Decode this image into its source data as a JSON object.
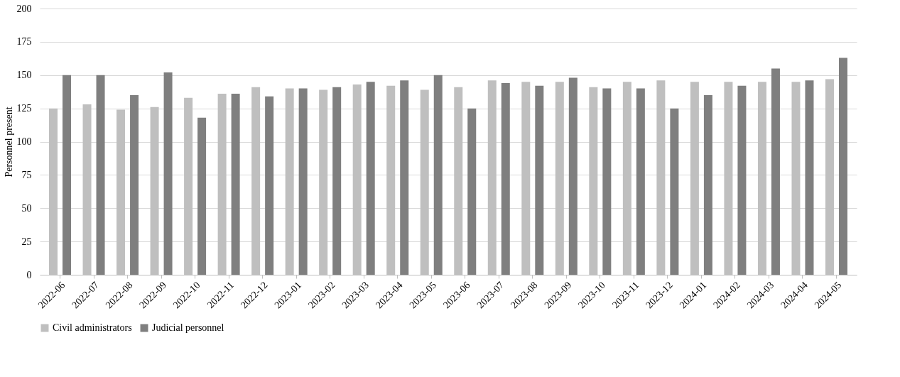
{
  "chart_data": {
    "type": "bar",
    "ylabel": "Personnel present",
    "categories": [
      "2022-06",
      "2022-07",
      "2022-08",
      "2022-09",
      "2022-10",
      "2022-11",
      "2022-12",
      "2023-01",
      "2023-02",
      "2023-03",
      "2023-04",
      "2023-05",
      "2023-06",
      "2023-07",
      "2023-08",
      "2023-09",
      "2023-10",
      "2023-11",
      "2023-12",
      "2024-01",
      "2024-02",
      "2024-03",
      "2024-04",
      "2024-05"
    ],
    "series": [
      {
        "name": "Civil administrators",
        "color": "#bfbfbf",
        "values": [
          125,
          128,
          124,
          126,
          133,
          136,
          141,
          140,
          139,
          143,
          142,
          139,
          141,
          146,
          145,
          145,
          141,
          145,
          146,
          145,
          145,
          145,
          145,
          147
        ]
      },
      {
        "name": "Judicial personnel",
        "color": "#7f7f7f",
        "values": [
          150,
          150,
          135,
          152,
          118,
          136,
          134,
          140,
          141,
          145,
          146,
          150,
          125,
          144,
          142,
          148,
          140,
          140,
          125,
          135,
          142,
          155,
          146,
          163
        ]
      }
    ],
    "ylim": [
      0,
      200
    ],
    "yticks": [
      0,
      25,
      50,
      75,
      100,
      125,
      150,
      175,
      200
    ],
    "grid": "y",
    "legend": "bottom"
  }
}
